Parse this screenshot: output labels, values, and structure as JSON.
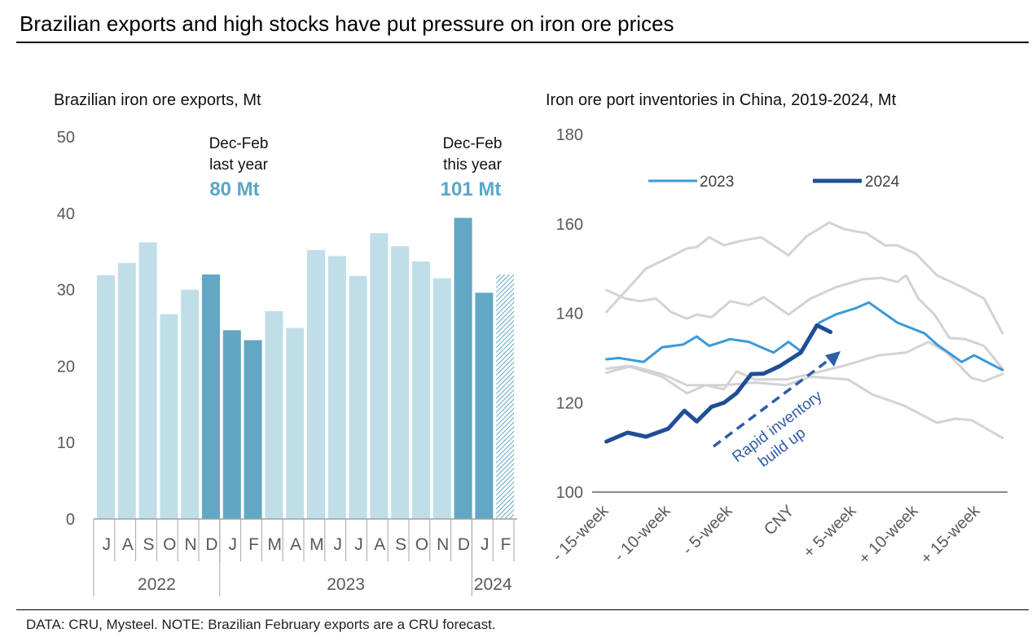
{
  "title": "Brazilian exports and high stocks have put pressure on iron ore prices",
  "footnote": "DATA: CRU, Mysteel. NOTE: Brazilian February exports are a CRU forecast.",
  "colors": {
    "light_bar": "#bfdee8",
    "dark_bar": "#62a7c4",
    "forecast_hatch": "#62a7c4",
    "series_2023": "#3a9ad9",
    "series_2024": "#1f4e96",
    "history": "#d3d3d3",
    "annotation_value": "#5aa7c7",
    "arrow": "#2f5ea8"
  },
  "chart_data": [
    {
      "type": "bar",
      "title": "Brazilian iron ore exports, Mt",
      "ylim": [
        0,
        50
      ],
      "yticks": [
        "0",
        "10",
        "20",
        "30",
        "40",
        "50"
      ],
      "categories": [
        "J",
        "A",
        "S",
        "O",
        "N",
        "D",
        "J",
        "F",
        "M",
        "A",
        "M",
        "J",
        "J",
        "A",
        "S",
        "O",
        "N",
        "D",
        "J",
        "F"
      ],
      "years": [
        {
          "label": "2022",
          "months": 6
        },
        {
          "label": "2023",
          "months": 12
        },
        {
          "label": "2024",
          "months": 2
        }
      ],
      "values": [
        31.9,
        33.5,
        36.2,
        26.8,
        30.0,
        32.0,
        24.7,
        23.4,
        27.2,
        25.0,
        35.2,
        34.4,
        31.8,
        37.4,
        35.7,
        33.7,
        31.5,
        39.4,
        29.6,
        32.0
      ],
      "highlight": [
        false,
        false,
        false,
        false,
        false,
        true,
        true,
        true,
        false,
        false,
        false,
        false,
        false,
        false,
        false,
        false,
        false,
        true,
        true,
        true
      ],
      "forecast": [
        false,
        false,
        false,
        false,
        false,
        false,
        false,
        false,
        false,
        false,
        false,
        false,
        false,
        false,
        false,
        false,
        false,
        false,
        false,
        true
      ],
      "annotations": [
        {
          "line1": "Dec-Feb",
          "line2": "last year",
          "value": "80 Mt"
        },
        {
          "line1": "Dec-Feb",
          "line2": "this year",
          "value": "101 Mt"
        }
      ]
    },
    {
      "type": "line",
      "title": "Iron ore port inventories in China, 2019-2024, Mt",
      "ylim": [
        100,
        180
      ],
      "yticks": [
        "100",
        "120",
        "140",
        "160",
        "180"
      ],
      "xlim": [
        -15.5,
        17.5
      ],
      "xticks": [
        {
          "x": -15,
          "label": "- 15-week"
        },
        {
          "x": -10,
          "label": "- 10-week"
        },
        {
          "x": -5,
          "label": "- 5-week"
        },
        {
          "x": 0,
          "label": "CNY"
        },
        {
          "x": 5,
          "label": "+ 5-week"
        },
        {
          "x": 10,
          "label": "+ 10-week"
        },
        {
          "x": 15,
          "label": "+ 15-week"
        }
      ],
      "legend_position": "top-left",
      "arrow_label": [
        "Rapid inventory",
        "build up"
      ],
      "series": [
        {
          "style": "history",
          "points": [
            [
              -14.7,
              140.3
            ],
            [
              -13.5,
              143.9
            ],
            [
              -11.5,
              150
            ],
            [
              -9.7,
              152.4
            ],
            [
              -8.2,
              154.5
            ],
            [
              -7.4,
              154.8
            ],
            [
              -6.4,
              157
            ],
            [
              -5.2,
              155.2
            ],
            [
              -4,
              156.1
            ],
            [
              -2.2,
              157
            ],
            [
              0,
              153
            ],
            [
              1.5,
              157.3
            ],
            [
              3.3,
              160.3
            ],
            [
              4.5,
              158.8
            ],
            [
              6.3,
              157.9
            ],
            [
              7.8,
              155.2
            ],
            [
              8.8,
              155.2
            ],
            [
              10.3,
              153.3
            ],
            [
              12,
              148.5
            ],
            [
              14.3,
              145.5
            ],
            [
              15.8,
              143.3
            ],
            [
              17.3,
              135.5
            ]
          ]
        },
        {
          "style": "history",
          "points": [
            [
              -14.7,
              145.2
            ],
            [
              -13.2,
              143.3
            ],
            [
              -12,
              142.7
            ],
            [
              -10.7,
              143.3
            ],
            [
              -9.5,
              140.3
            ],
            [
              -8.2,
              138.8
            ],
            [
              -7.4,
              139.7
            ],
            [
              -6.2,
              139.1
            ],
            [
              -4.7,
              142.7
            ],
            [
              -3.2,
              141.8
            ],
            [
              -2,
              143.6
            ],
            [
              0,
              139.7
            ],
            [
              1.8,
              143.3
            ],
            [
              3.8,
              145.8
            ],
            [
              6,
              147.6
            ],
            [
              7.5,
              147.9
            ],
            [
              8.8,
              147
            ],
            [
              9.5,
              148.5
            ],
            [
              10.5,
              143.3
            ],
            [
              11.8,
              139.7
            ],
            [
              13,
              134.5
            ],
            [
              14.3,
              134.2
            ],
            [
              15.8,
              132.7
            ],
            [
              17.3,
              127.6
            ]
          ]
        },
        {
          "style": "history",
          "points": [
            [
              -14.7,
              127.6
            ],
            [
              -13,
              128.2
            ],
            [
              -10.2,
              125.8
            ],
            [
              -8.2,
              122.1
            ],
            [
              -6.7,
              123.9
            ],
            [
              -5.2,
              123
            ],
            [
              -4.2,
              127
            ],
            [
              -2.7,
              125.2
            ],
            [
              -0.2,
              125.2
            ],
            [
              1.8,
              126.4
            ],
            [
              4.8,
              128.5
            ],
            [
              7.3,
              130.6
            ],
            [
              9.5,
              131.2
            ],
            [
              11.3,
              133.6
            ],
            [
              12.8,
              131.2
            ],
            [
              14.8,
              125.5
            ],
            [
              15.8,
              124.8
            ],
            [
              17.3,
              126.4
            ]
          ]
        },
        {
          "style": "history",
          "points": [
            [
              -14.7,
              126.7
            ],
            [
              -12.7,
              128.2
            ],
            [
              -10.2,
              126.4
            ],
            [
              -8.2,
              123.9
            ],
            [
              -5.2,
              123.9
            ],
            [
              -2.7,
              124.5
            ],
            [
              -0.2,
              123.9
            ],
            [
              1.8,
              125.8
            ],
            [
              4.8,
              125.2
            ],
            [
              6.8,
              121.8
            ],
            [
              9.3,
              119.4
            ],
            [
              12,
              115.5
            ],
            [
              13.5,
              116.4
            ],
            [
              14.8,
              116.1
            ],
            [
              17.3,
              112.1
            ]
          ]
        },
        {
          "name": "2023",
          "style": "series_2023",
          "points": [
            [
              -14.7,
              129.7
            ],
            [
              -13.7,
              130
            ],
            [
              -11.7,
              129.1
            ],
            [
              -10.2,
              132.4
            ],
            [
              -8.5,
              133
            ],
            [
              -7.4,
              134.8
            ],
            [
              -6.4,
              132.7
            ],
            [
              -4.7,
              134.2
            ],
            [
              -3.2,
              133.6
            ],
            [
              -1.2,
              131.2
            ],
            [
              0,
              133.6
            ],
            [
              1,
              131.5
            ],
            [
              2.5,
              137.9
            ],
            [
              3.8,
              139.7
            ],
            [
              5.5,
              141.2
            ],
            [
              6.5,
              142.4
            ],
            [
              8.8,
              137.9
            ],
            [
              11,
              135.5
            ],
            [
              12,
              133
            ],
            [
              14,
              129.1
            ],
            [
              15,
              130.6
            ],
            [
              17.3,
              127.3
            ]
          ]
        },
        {
          "name": "2024",
          "style": "series_2024",
          "points": [
            [
              -14.7,
              111.3
            ],
            [
              -13,
              113.3
            ],
            [
              -11.5,
              112.4
            ],
            [
              -9.7,
              114.2
            ],
            [
              -8.4,
              118.2
            ],
            [
              -7.4,
              115.8
            ],
            [
              -6.2,
              119.1
            ],
            [
              -5.2,
              120
            ],
            [
              -4.2,
              122.1
            ],
            [
              -3,
              126.4
            ],
            [
              -2,
              126.5
            ],
            [
              -0.7,
              128.2
            ],
            [
              1,
              131.2
            ],
            [
              2.3,
              137.3
            ],
            [
              3.4,
              135.8
            ]
          ]
        }
      ]
    }
  ]
}
